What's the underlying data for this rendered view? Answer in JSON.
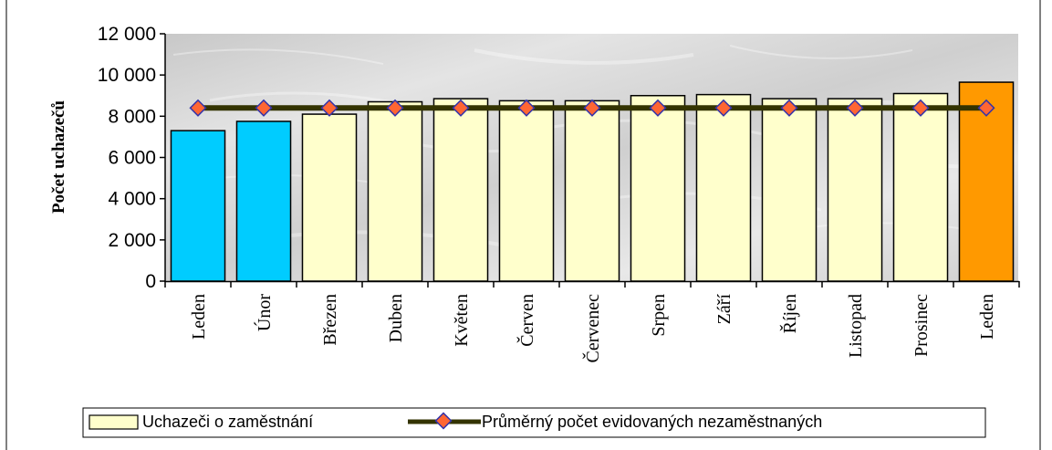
{
  "chart_data": {
    "type": "bar",
    "title": "",
    "xlabel": "",
    "ylabel": "Počet uchazečů",
    "ylim": [
      0,
      12000
    ],
    "yticks": [
      0,
      2000,
      4000,
      6000,
      8000,
      10000,
      12000
    ],
    "ytick_labels": [
      "0",
      "2 000",
      "4 000",
      "6 000",
      "8 000",
      "10 000",
      "12 000"
    ],
    "categories": [
      "Leden",
      "Únor",
      "Březen",
      "Duben",
      "Květen",
      "Červen",
      "Červenec",
      "Srpen",
      "Září",
      "Říjen",
      "Listopad",
      "Prosinec",
      "Leden"
    ],
    "series": [
      {
        "name": "Uchazeči o zaměstnání",
        "kind": "bar",
        "values": [
          7300,
          7750,
          8100,
          8700,
          8850,
          8750,
          8750,
          9000,
          9050,
          8850,
          8850,
          9100,
          9650
        ],
        "bar_colors": [
          "#00ccff",
          "#00ccff",
          "#ffffcc",
          "#ffffcc",
          "#ffffcc",
          "#ffffcc",
          "#ffffcc",
          "#ffffcc",
          "#ffffcc",
          "#ffffcc",
          "#ffffcc",
          "#ffffcc",
          "#ff9900"
        ]
      },
      {
        "name": "Průměrný počet evidovaných nezaměstnaných",
        "kind": "line",
        "values": [
          8400,
          8400,
          8400,
          8400,
          8400,
          8400,
          8400,
          8400,
          8400,
          8400,
          8400,
          8400,
          8400
        ],
        "color": "#333300",
        "marker_color": "#ff6633"
      }
    ],
    "grid": false,
    "legend_position": "bottom"
  }
}
